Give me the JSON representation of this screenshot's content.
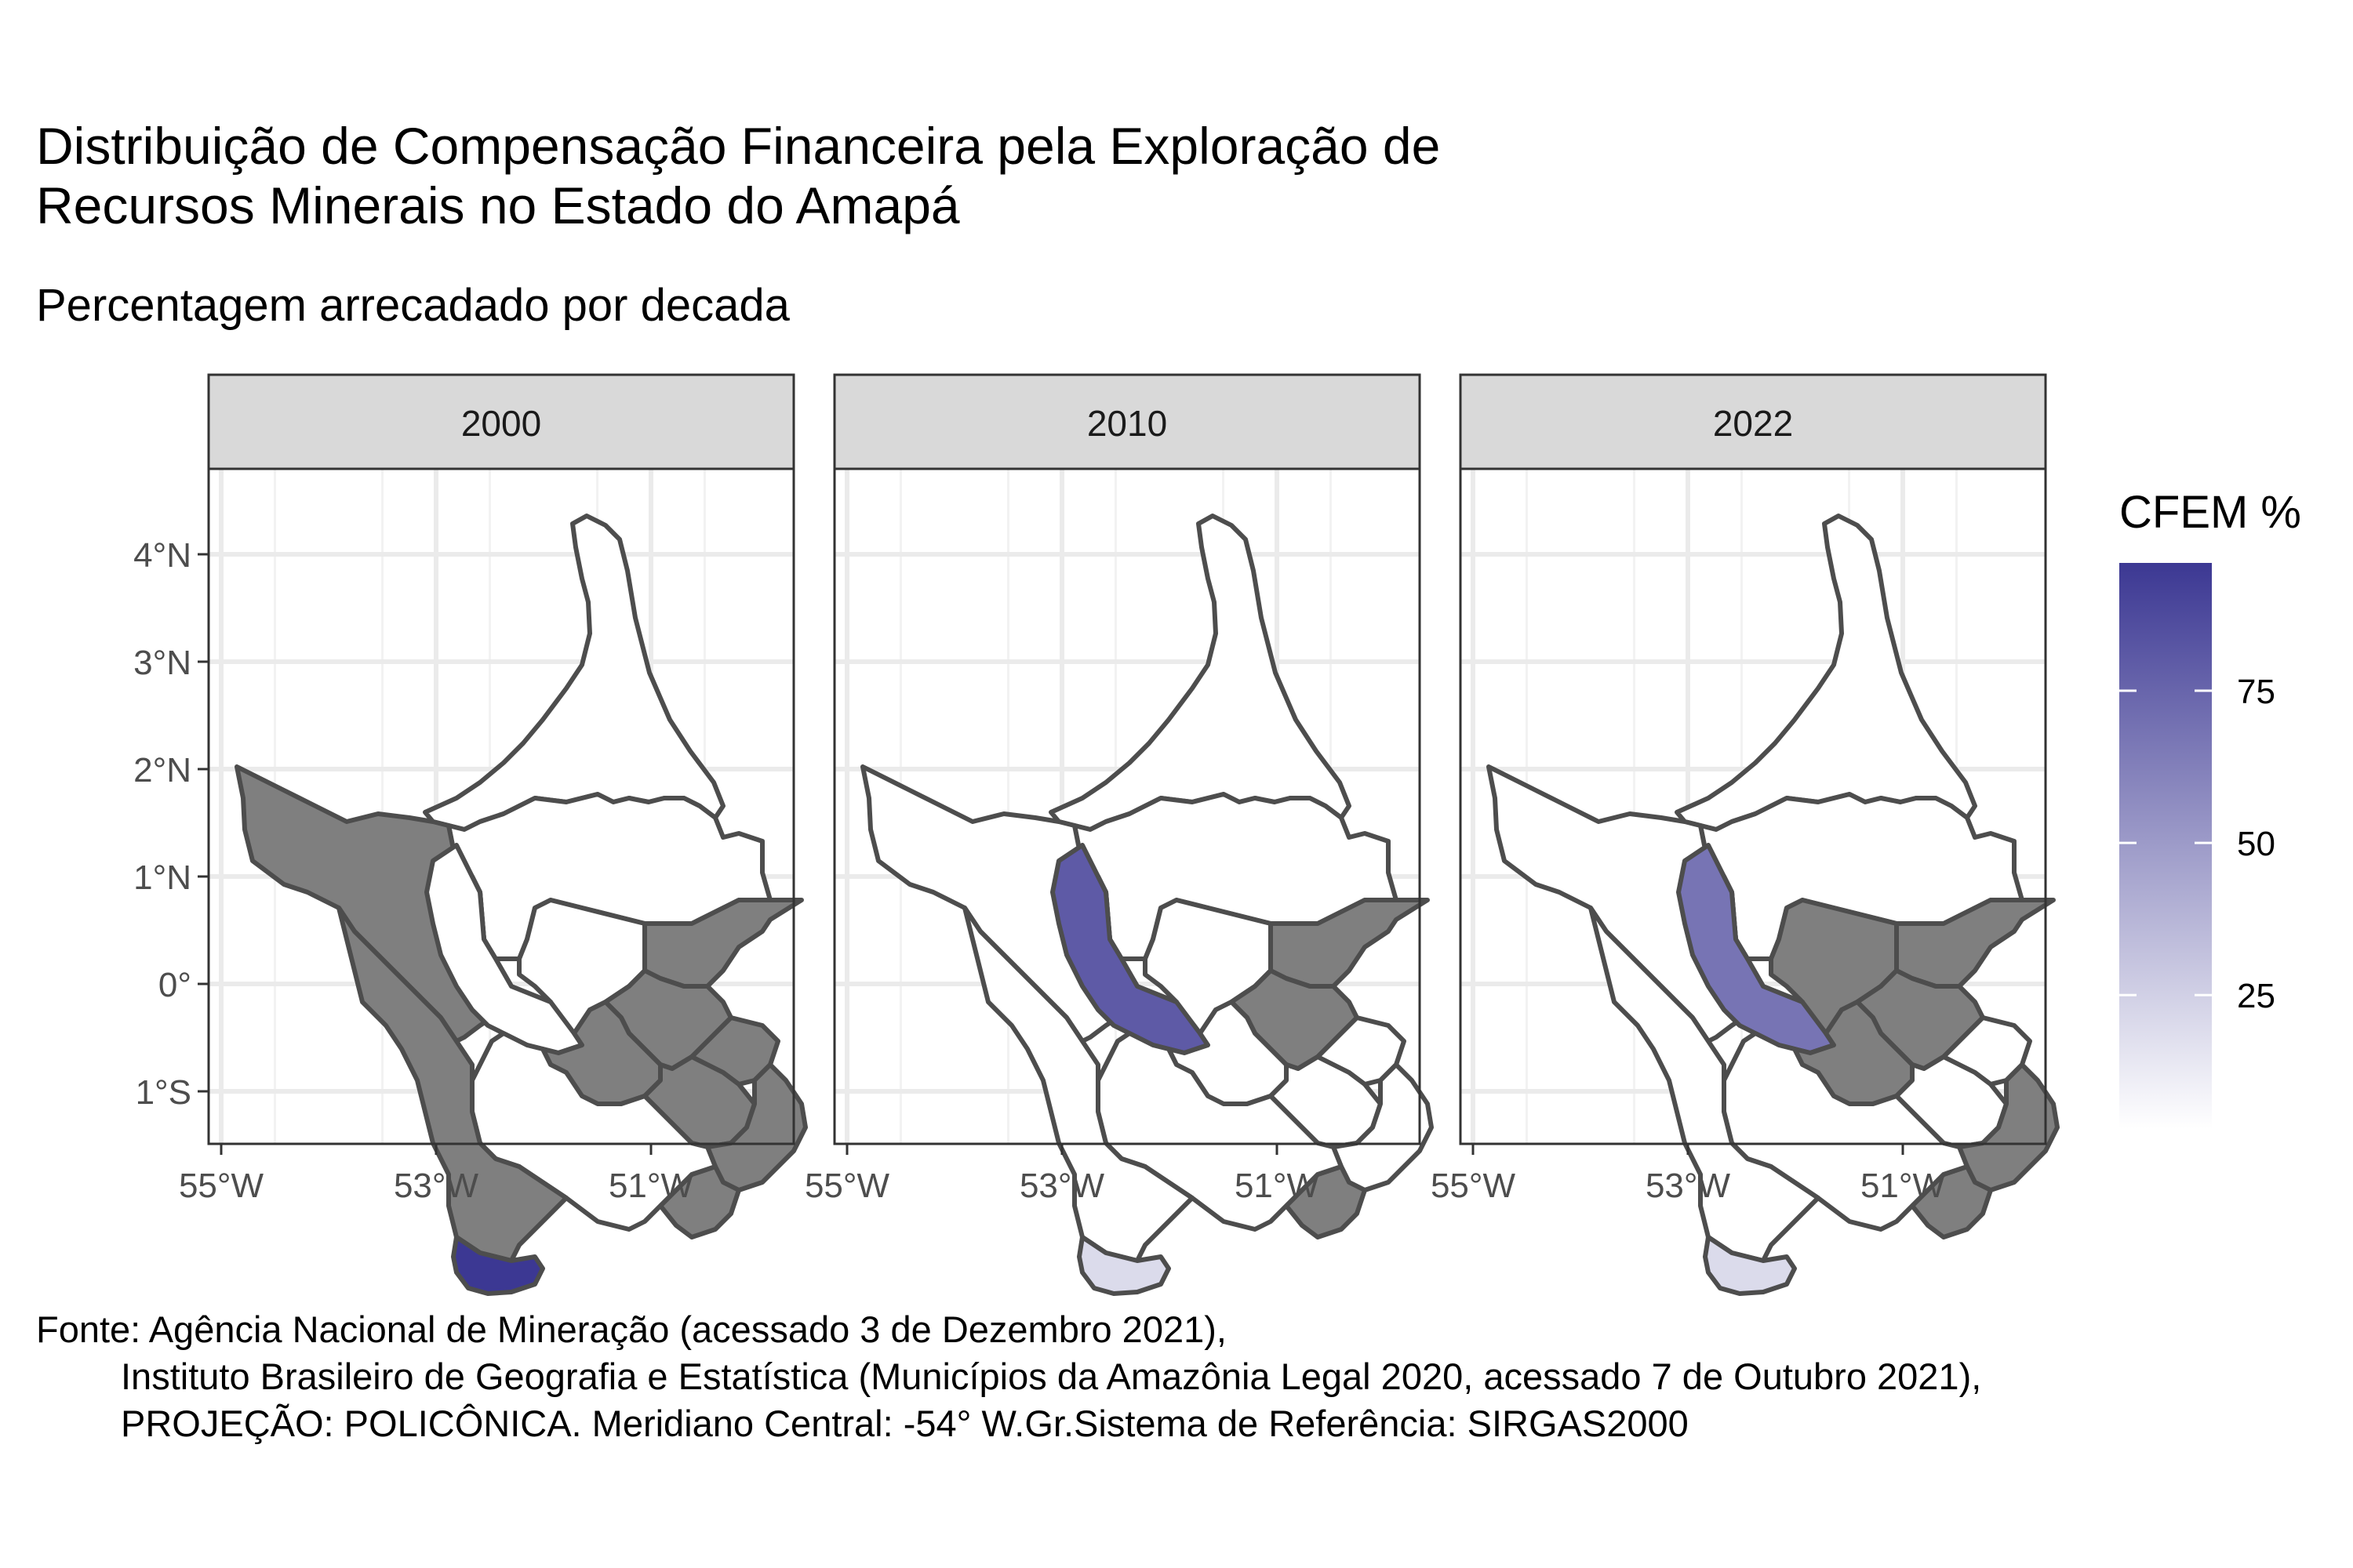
{
  "title_lines": [
    "Distribuição de Compensação Financeira pela Exploração de",
    "Recursos Minerais no Estado do Amapá"
  ],
  "subtitle": "Percentagem arrecadado por decada",
  "caption_lines": [
    "Fonte: Agência Nacional de Mineração (acessado 3 de Dezembro 2021),",
    "Instituto Brasileiro de Geografia e Estatística (Municípios da Amazônia Legal 2020, acessado 7 de Outubro 2021),",
    "PROJEÇÃO: POLICÔNICA. Meridiano Central: -54° W.Gr.Sistema de Referência: SIRGAS2000"
  ],
  "legend": {
    "title": "CFEM %",
    "ticks": [
      {
        "value": 25,
        "label": "25"
      },
      {
        "value": 50,
        "label": "50"
      },
      {
        "value": 75,
        "label": "75"
      }
    ],
    "range": [
      3,
      96
    ],
    "colors": {
      "low": "#ffffff",
      "high": "#3c3893"
    }
  },
  "na_color": "#7f7f7f",
  "axes": {
    "y_ticks": [
      {
        "value": 4,
        "label": "4°N"
      },
      {
        "value": 3,
        "label": "3°N"
      },
      {
        "value": 2,
        "label": "2°N"
      },
      {
        "value": 1,
        "label": "1°N"
      },
      {
        "value": 0,
        "label": "0°"
      },
      {
        "value": -1,
        "label": "1°S"
      }
    ],
    "x_ticks": [
      {
        "value": -55,
        "label": "55°W"
      },
      {
        "value": -53,
        "label": "53°W"
      },
      {
        "value": -51,
        "label": "51°W"
      }
    ]
  },
  "panels": [
    {
      "label": "2000",
      "regions": {
        "oiapoque": 1,
        "calcoene": 1,
        "pedra_branca": null,
        "serra_navio": 1,
        "pracuuba": 1,
        "amapa": null,
        "tartarugalzinho": null,
        "porto_grande": null,
        "cutias": null,
        "ferreira_gomes": null,
        "macapa": null,
        "santana": null,
        "mazagao": 1,
        "laranjal": null,
        "vitoria": 96
      }
    },
    {
      "label": "2010",
      "regions": {
        "oiapoque": 1,
        "calcoene": 1,
        "pedra_branca": 1,
        "serra_navio": 80,
        "pracuuba": 1,
        "amapa": null,
        "tartarugalzinho": null,
        "porto_grande": 1,
        "cutias": 1,
        "ferreira_gomes": 1,
        "macapa": 1,
        "santana": null,
        "mazagao": 1,
        "laranjal": 1,
        "vitoria": 20
      }
    },
    {
      "label": "2022",
      "regions": {
        "oiapoque": 1,
        "calcoene": 1,
        "pedra_branca": 1,
        "serra_navio": 68,
        "pracuuba": null,
        "amapa": null,
        "tartarugalzinho": null,
        "porto_grande": null,
        "cutias": 1,
        "ferreira_gomes": 1,
        "macapa": null,
        "santana": null,
        "mazagao": 1,
        "laranjal": 2,
        "vitoria": 20
      }
    }
  ]
}
